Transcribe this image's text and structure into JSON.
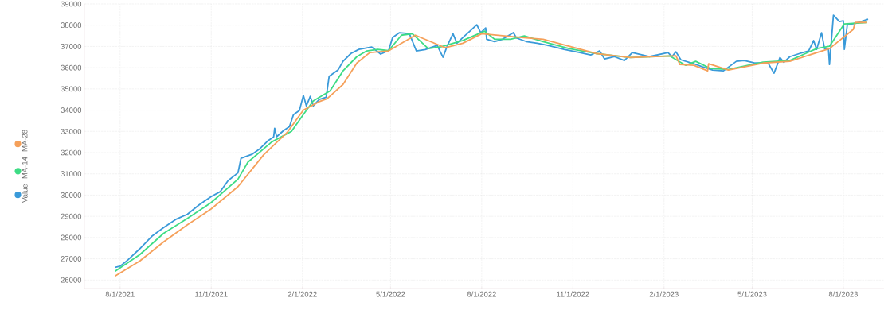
{
  "chart_data": {
    "type": "line",
    "xlim": [
      "2021-06-26",
      "2023-09-11"
    ],
    "ylim": [
      25600,
      39000
    ],
    "xticks": [
      {
        "value": "2021-08-01",
        "label": "8/1/2021"
      },
      {
        "value": "2021-11-01",
        "label": "11/1/2021"
      },
      {
        "value": "2022-02-01",
        "label": "2/1/2022"
      },
      {
        "value": "2022-05-01",
        "label": "5/1/2022"
      },
      {
        "value": "2022-08-01",
        "label": "8/1/2022"
      },
      {
        "value": "2022-11-01",
        "label": "11/1/2022"
      },
      {
        "value": "2023-02-01",
        "label": "2/1/2023"
      },
      {
        "value": "2023-05-01",
        "label": "5/1/2023"
      },
      {
        "value": "2023-08-01",
        "label": "8/1/2023"
      }
    ],
    "yticks": [
      26000,
      27000,
      28000,
      29000,
      30000,
      31000,
      32000,
      33000,
      34000,
      35000,
      36000,
      37000,
      38000,
      39000
    ],
    "grid": true,
    "legend": "left",
    "marker": "none",
    "line_style": "solid",
    "series": [
      {
        "name": "Value",
        "color": "#3a9ad9",
        "x": [
          "2021-07-27",
          "2021-08-01",
          "2021-08-09",
          "2021-08-21",
          "2021-09-02",
          "2021-09-14",
          "2021-09-26",
          "2021-10-08",
          "2021-10-20",
          "2021-11-01",
          "2021-11-10",
          "2021-11-18",
          "2021-11-28",
          "2021-12-01",
          "2021-12-12",
          "2021-12-20",
          "2021-12-28",
          "2022-01-03",
          "2022-01-04",
          "2022-01-06",
          "2022-01-13",
          "2022-01-19",
          "2022-01-23",
          "2022-01-29",
          "2022-02-02",
          "2022-02-05",
          "2022-02-09",
          "2022-02-12",
          "2022-02-18",
          "2022-02-25",
          "2022-02-28",
          "2022-03-09",
          "2022-03-14",
          "2022-03-22",
          "2022-03-30",
          "2022-04-12",
          "2022-04-21",
          "2022-04-29",
          "2022-05-03",
          "2022-05-10",
          "2022-05-20",
          "2022-05-27",
          "2022-06-05",
          "2022-06-17",
          "2022-06-23",
          "2022-06-27",
          "2022-07-03",
          "2022-07-07",
          "2022-07-13",
          "2022-07-21",
          "2022-07-27",
          "2022-07-31",
          "2022-08-05",
          "2022-08-06",
          "2022-08-14",
          "2022-08-22",
          "2022-09-02",
          "2022-09-05",
          "2022-09-15",
          "2022-09-26",
          "2022-10-07",
          "2022-10-23",
          "2022-11-08",
          "2022-11-19",
          "2022-11-28",
          "2022-12-03",
          "2022-12-13",
          "2022-12-23",
          "2022-12-31",
          "2023-01-17",
          "2023-02-05",
          "2023-02-09",
          "2023-02-13",
          "2023-02-18",
          "2023-03-01",
          "2023-03-12",
          "2023-03-22",
          "2023-04-02",
          "2023-04-15",
          "2023-04-23",
          "2023-05-04",
          "2023-05-17",
          "2023-05-23",
          "2023-05-29",
          "2023-06-02",
          "2023-06-08",
          "2023-06-18",
          "2023-06-27",
          "2023-07-02",
          "2023-07-05",
          "2023-07-10",
          "2023-07-13",
          "2023-07-17",
          "2023-07-18",
          "2023-07-22",
          "2023-07-28",
          "2023-08-01",
          "2023-08-02",
          "2023-08-05",
          "2023-08-14",
          "2023-08-26"
        ],
        "values": [
          26600,
          26650,
          26950,
          27480,
          28060,
          28470,
          28850,
          29100,
          29550,
          29930,
          30160,
          30680,
          31050,
          31730,
          31920,
          32180,
          32550,
          32740,
          33150,
          32750,
          33040,
          33230,
          33790,
          33980,
          34700,
          34200,
          34650,
          34200,
          34500,
          34610,
          35590,
          35890,
          36300,
          36670,
          36860,
          36970,
          36640,
          36800,
          37420,
          37650,
          37600,
          36790,
          36850,
          37050,
          36490,
          37000,
          37600,
          37150,
          37420,
          37760,
          38020,
          37650,
          37870,
          37340,
          37230,
          37340,
          37650,
          37400,
          37230,
          37150,
          37050,
          36860,
          36710,
          36600,
          36790,
          36410,
          36520,
          36340,
          36710,
          36520,
          36710,
          36520,
          36750,
          36370,
          36220,
          36040,
          35890,
          35850,
          36300,
          36340,
          36220,
          36220,
          35740,
          36480,
          36250,
          36520,
          36670,
          36790,
          37280,
          36860,
          37650,
          36900,
          36860,
          36150,
          38470,
          38170,
          38210,
          36860,
          38020,
          38100,
          38280
        ]
      },
      {
        "name": "MA-14",
        "color": "#3ddc84",
        "x": [
          "2021-07-27",
          "2021-08-21",
          "2021-09-14",
          "2021-10-08",
          "2021-11-01",
          "2021-11-28",
          "2021-12-08",
          "2022-01-01",
          "2022-01-21",
          "2022-02-02",
          "2022-02-12",
          "2022-03-01",
          "2022-03-14",
          "2022-03-28",
          "2022-04-07",
          "2022-04-18",
          "2022-04-29",
          "2022-05-12",
          "2022-05-23",
          "2022-06-08",
          "2022-06-21",
          "2022-07-13",
          "2022-08-04",
          "2022-08-14",
          "2022-08-30",
          "2022-09-13",
          "2022-10-02",
          "2022-10-28",
          "2022-11-24",
          "2022-12-29",
          "2023-02-07",
          "2023-02-23",
          "2023-03-05",
          "2023-03-20",
          "2023-04-07",
          "2023-05-12",
          "2023-06-08",
          "2023-07-05",
          "2023-07-18",
          "2023-08-02",
          "2023-08-25"
        ],
        "values": [
          26410,
          27200,
          28200,
          28900,
          29650,
          30750,
          31550,
          32500,
          33000,
          33800,
          34430,
          34910,
          35850,
          36520,
          36790,
          36860,
          36800,
          37530,
          37600,
          36900,
          36980,
          37280,
          37720,
          37340,
          37340,
          37500,
          37230,
          36900,
          36670,
          36480,
          36550,
          36110,
          36300,
          35960,
          35920,
          36260,
          36340,
          36900,
          37010,
          38060,
          38130
        ]
      },
      {
        "name": "MA-28",
        "color": "#f5a05a",
        "x": [
          "2021-07-27",
          "2021-08-21",
          "2021-09-14",
          "2021-10-08",
          "2021-11-01",
          "2021-11-28",
          "2021-12-24",
          "2022-01-17",
          "2022-02-02",
          "2022-02-18",
          "2022-02-26",
          "2022-03-14",
          "2022-03-28",
          "2022-04-10",
          "2022-04-29",
          "2022-05-26",
          "2022-06-25",
          "2022-07-13",
          "2022-08-01",
          "2022-09-10",
          "2022-10-02",
          "2022-11-24",
          "2022-12-29",
          "2023-02-13",
          "2023-02-17",
          "2023-03-03",
          "2023-03-17",
          "2023-03-18",
          "2023-04-07",
          "2023-05-12",
          "2023-06-08",
          "2023-07-18",
          "2023-08-11",
          "2023-08-13",
          "2023-08-25"
        ],
        "values": [
          26190,
          26900,
          27800,
          28600,
          29350,
          30400,
          31900,
          32970,
          34000,
          34400,
          34540,
          35210,
          36220,
          36710,
          36790,
          37530,
          36940,
          37150,
          37600,
          37420,
          37340,
          36670,
          36480,
          36560,
          36150,
          36110,
          35850,
          36190,
          35890,
          36220,
          36300,
          36900,
          37800,
          38130,
          38130
        ]
      }
    ]
  }
}
